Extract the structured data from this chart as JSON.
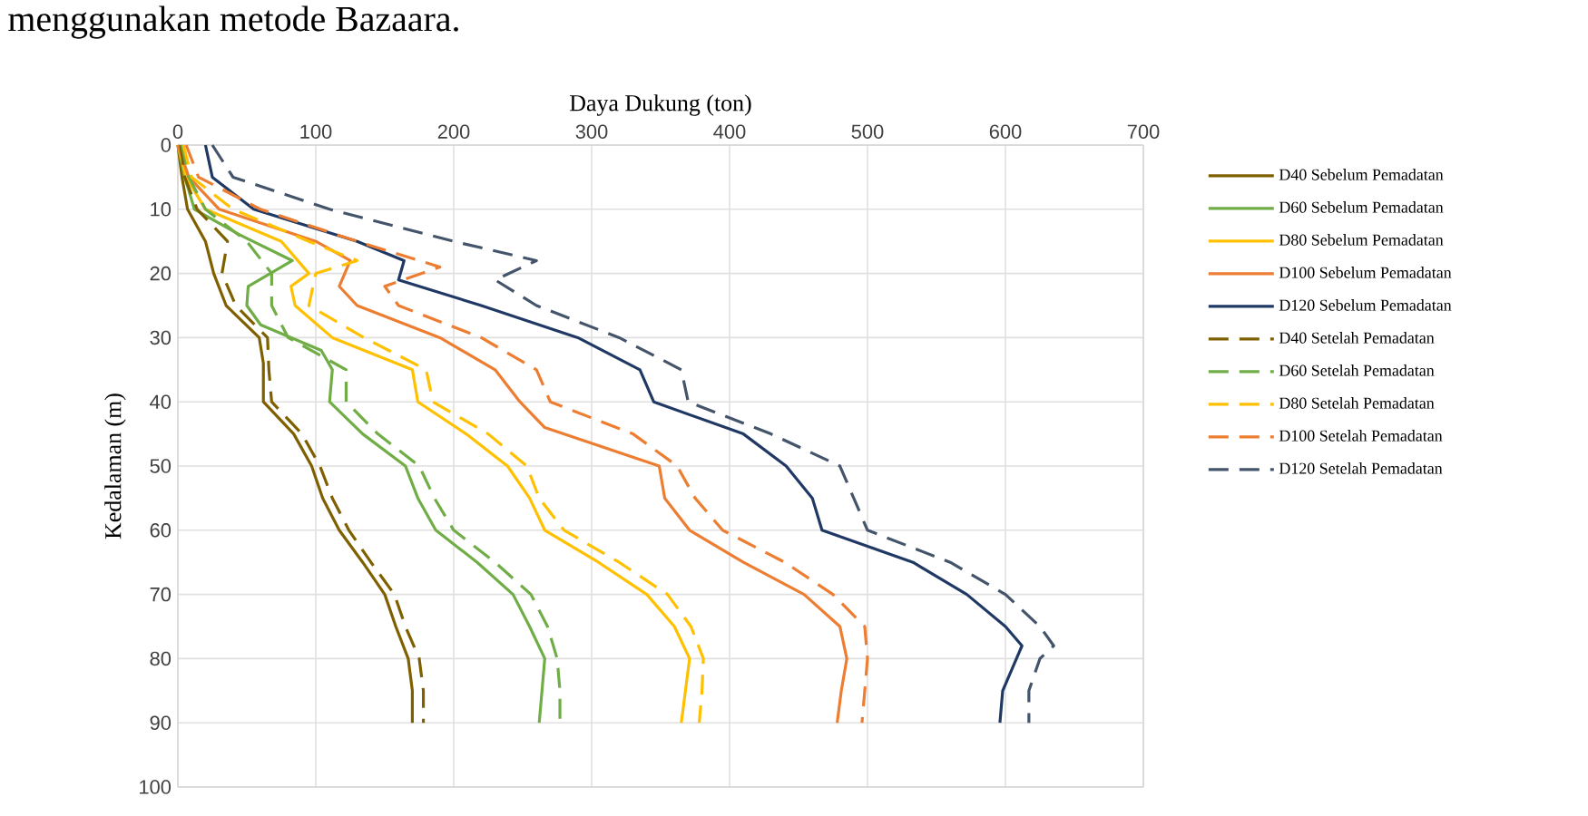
{
  "chart_data": {
    "type": "line",
    "xlabel": "Daya Dukung (ton)",
    "ylabel": "Kedalaman (m)",
    "annotations": [
      "menggunakan metode Bazaara."
    ],
    "xlim": [
      0,
      700
    ],
    "xticks": [
      0,
      100,
      200,
      300,
      400,
      500,
      600,
      700
    ],
    "ylim": [
      100,
      0
    ],
    "yticks": [
      0,
      10,
      20,
      30,
      40,
      50,
      60,
      70,
      80,
      90,
      100
    ],
    "grid": true,
    "legend": "right",
    "series": [
      {
        "name": "D40 Sebelum Pemadatan",
        "color": "#7f6000",
        "line_style": "solid",
        "x": [
          0,
          3,
          7,
          20,
          26,
          35,
          59,
          62,
          62,
          84,
          97,
          105,
          117,
          134,
          150,
          158,
          167,
          170,
          170
        ],
        "values": [
          0,
          5,
          10,
          15,
          20,
          25,
          30,
          34,
          40,
          45,
          50,
          55,
          60,
          65,
          70,
          75,
          80,
          85,
          90
        ]
      },
      {
        "name": "D60 Sebelum Pemadatan",
        "color": "#70ad47",
        "line_style": "solid",
        "x": [
          0,
          5,
          12,
          45,
          83,
          51,
          50,
          60,
          104,
          112,
          110,
          134,
          165,
          174,
          187,
          217,
          243,
          255,
          266,
          264,
          262
        ],
        "values": [
          0,
          5,
          10,
          14,
          18,
          22,
          25,
          28,
          32,
          35,
          40,
          45,
          50,
          55,
          60,
          65,
          70,
          75,
          80,
          85,
          90
        ]
      },
      {
        "name": "D80 Sebelum Pemadatan",
        "color": "#ffc000",
        "line_style": "solid",
        "x": [
          0,
          6,
          20,
          75,
          95,
          82,
          85,
          112,
          170,
          174,
          209,
          239,
          255,
          266,
          305,
          340,
          360,
          371,
          368,
          365
        ],
        "values": [
          0,
          5,
          10,
          15,
          20,
          22,
          25,
          30,
          35,
          40,
          45,
          50,
          55,
          60,
          65,
          70,
          75,
          80,
          85,
          90
        ]
      },
      {
        "name": "D100 Sebelum Pemadatan",
        "color": "#ed7d31",
        "line_style": "solid",
        "x": [
          0,
          8,
          30,
          100,
          125,
          117,
          130,
          190,
          230,
          248,
          266,
          349,
          353,
          371,
          410,
          454,
          480,
          485,
          481,
          478
        ],
        "values": [
          0,
          5,
          10,
          15,
          18,
          22,
          25,
          30,
          35,
          40,
          44,
          50,
          55,
          60,
          65,
          70,
          75,
          80,
          85,
          90
        ]
      },
      {
        "name": "D120 Sebelum Pemadatan",
        "color": "#203864",
        "line_style": "solid",
        "x": [
          20,
          25,
          55,
          130,
          164,
          160,
          220,
          290,
          335,
          345,
          410,
          441,
          460,
          467,
          533,
          572,
          600,
          612,
          608,
          598,
          596
        ],
        "values": [
          0,
          5,
          10,
          15,
          18,
          21,
          25,
          30,
          35,
          40,
          45,
          50,
          55,
          60,
          65,
          70,
          75,
          78,
          80,
          85,
          90
        ]
      },
      {
        "name": "D40 Setelah Pemadatan",
        "color": "#7f6000",
        "line_style": "dashed",
        "x": [
          2,
          5,
          14,
          36,
          32,
          42,
          65,
          66,
          68,
          90,
          103,
          112,
          124,
          140,
          157,
          165,
          175,
          178,
          178
        ],
        "values": [
          0,
          5,
          10,
          15,
          20,
          25,
          30,
          35,
          40,
          45,
          50,
          55,
          60,
          65,
          70,
          75,
          80,
          85,
          90
        ]
      },
      {
        "name": "D60 Setelah Pemadatan",
        "color": "#70ad47",
        "line_style": "dashed",
        "x": [
          3,
          8,
          20,
          50,
          68,
          68,
          80,
          122,
          122,
          145,
          175,
          186,
          200,
          230,
          256,
          268,
          275,
          277,
          277
        ],
        "values": [
          0,
          5,
          10,
          15,
          20,
          25,
          30,
          35,
          40,
          45,
          50,
          55,
          60,
          65,
          70,
          75,
          80,
          85,
          90
        ]
      },
      {
        "name": "D80 Setelah Pemadatan",
        "color": "#ffc000",
        "line_style": "dashed",
        "x": [
          4,
          10,
          40,
          95,
          130,
          100,
          95,
          135,
          180,
          185,
          225,
          253,
          262,
          280,
          320,
          355,
          372,
          381,
          380,
          378
        ],
        "values": [
          0,
          5,
          10,
          15,
          18,
          20,
          25,
          30,
          35,
          40,
          45,
          50,
          55,
          60,
          65,
          70,
          75,
          80,
          85,
          90
        ]
      },
      {
        "name": "D100 Setelah Pemadatan",
        "color": "#ed7d31",
        "line_style": "dashed",
        "x": [
          6,
          15,
          60,
          130,
          190,
          150,
          160,
          220,
          260,
          270,
          330,
          362,
          375,
          395,
          440,
          475,
          498,
          500,
          498,
          496
        ],
        "values": [
          0,
          5,
          10,
          15,
          19,
          22,
          25,
          30,
          35,
          40,
          45,
          50,
          55,
          60,
          65,
          70,
          75,
          80,
          85,
          90
        ]
      },
      {
        "name": "D120 Setelah Pemadatan",
        "color": "#44546a",
        "line_style": "dashed",
        "x": [
          25,
          40,
          110,
          200,
          260,
          230,
          260,
          320,
          365,
          370,
          430,
          480,
          490,
          500,
          560,
          600,
          625,
          635,
          625,
          617,
          617
        ],
        "values": [
          0,
          5,
          10,
          15,
          18,
          21,
          25,
          30,
          35,
          40,
          45,
          50,
          55,
          60,
          65,
          70,
          75,
          78,
          80,
          85,
          90
        ]
      }
    ]
  }
}
